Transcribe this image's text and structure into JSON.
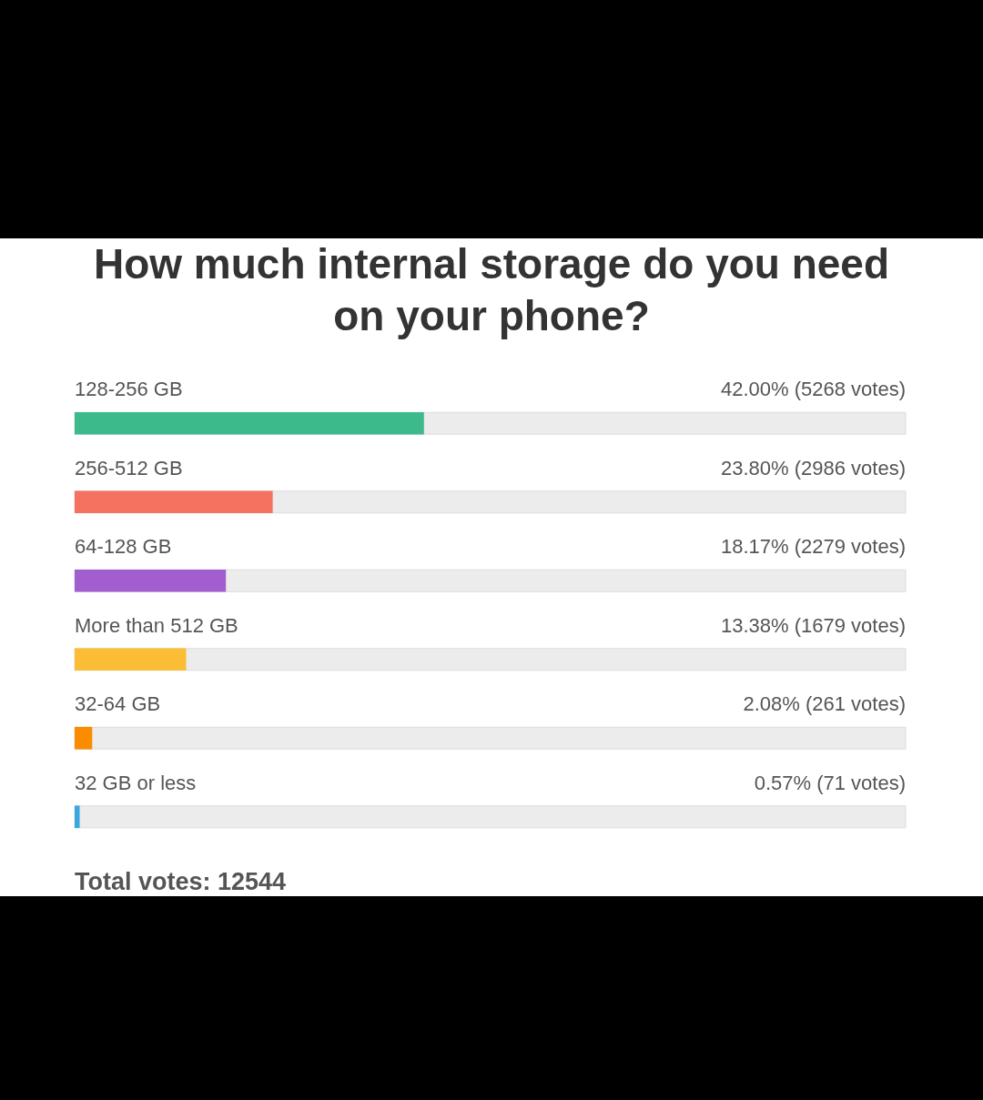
{
  "chart_data": {
    "type": "bar",
    "orientation": "horizontal",
    "title": "How much internal storage do you need on your phone?",
    "categories": [
      "128-256 GB",
      "256-512 GB",
      "64-128 GB",
      "More than 512 GB",
      "32-64 GB",
      "32 GB or less"
    ],
    "values": [
      42.0,
      23.8,
      18.17,
      13.38,
      2.08,
      0.57
    ],
    "colors": [
      "#3dba8c",
      "#f4725f",
      "#a25ecf",
      "#fbbd35",
      "#fb8c00",
      "#3ba9e0"
    ],
    "value_labels": [
      "42.00% (5268 votes)",
      "23.80% (2986 votes)",
      "18.17% (2279 votes)",
      "13.38% (1679 votes)",
      "2.08% (261 votes)",
      "0.57% (71 votes)"
    ],
    "xlim": [
      0,
      100
    ],
    "tick_labels": "y",
    "annotations": [
      "Total votes: 12544"
    ]
  }
}
